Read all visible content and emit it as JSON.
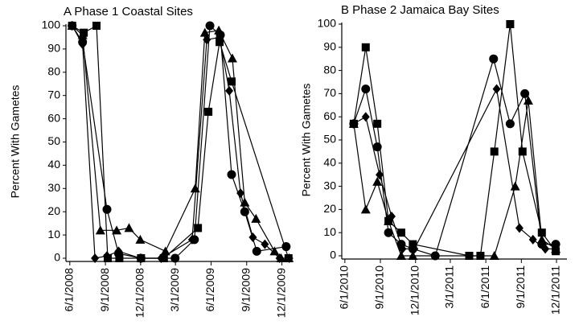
{
  "chart_data": [
    {
      "type": "line",
      "title": "A  Phase 1 Coastal Sites",
      "y_label": "Percent With Gametes",
      "xlim": [
        "2008-05-22",
        "2009-12-31"
      ],
      "ylim": [
        0,
        100
      ],
      "xticks": [
        {
          "value": "2008-06-01",
          "label": "6/1/2008"
        },
        {
          "value": "2008-09-01",
          "label": "9/1/2008"
        },
        {
          "value": "2008-12-01",
          "label": "12/1/2008"
        },
        {
          "value": "2009-03-01",
          "label": "3/1/2009"
        },
        {
          "value": "2009-06-01",
          "label": "6/1/2009"
        },
        {
          "value": "2009-09-01",
          "label": "9/1/2009"
        },
        {
          "value": "2009-12-01",
          "label": "12/1/2009"
        }
      ],
      "yticks": [
        0,
        10,
        20,
        30,
        40,
        50,
        60,
        70,
        80,
        90,
        100
      ],
      "series": [
        {
          "marker": "square",
          "color": "#000000",
          "x": [
            "2008-06-07",
            "2008-07-07",
            "2008-08-09",
            "2008-09-07",
            "2008-10-07",
            "2008-12-02",
            "2009-01-30",
            "2009-04-28",
            "2009-05-25",
            "2009-06-23",
            "2009-07-24",
            "2009-12-18"
          ],
          "values": [
            100,
            97,
            100,
            0,
            0,
            0,
            0,
            13,
            63,
            93,
            76,
            0
          ]
        },
        {
          "marker": "circle",
          "color": "#000000",
          "x": [
            "2008-06-07",
            "2008-07-04",
            "2008-09-05",
            "2008-10-05",
            "2008-12-02",
            "2009-02-28",
            "2009-04-19",
            "2009-05-29",
            "2009-06-25",
            "2009-07-24",
            "2009-08-27",
            "2009-09-27",
            "2009-12-12"
          ],
          "values": [
            100,
            93,
            21,
            2,
            0,
            0,
            8,
            100,
            96,
            36,
            20,
            3,
            5
          ]
        },
        {
          "marker": "triangle",
          "color": "#000000",
          "x": [
            "2008-06-07",
            "2008-07-04",
            "2008-08-19",
            "2008-09-30",
            "2008-11-01",
            "2008-11-30",
            "2009-02-03",
            "2009-04-21",
            "2009-05-16",
            "2009-06-21",
            "2009-07-26",
            "2009-08-27",
            "2009-09-25",
            "2009-11-12",
            "2009-11-29"
          ],
          "values": [
            100,
            96,
            12,
            12,
            13,
            8,
            3,
            30,
            97,
            98,
            86,
            24,
            17,
            3,
            0
          ]
        },
        {
          "marker": "diamond",
          "color": "#000000",
          "x": [
            "2008-06-07",
            "2008-07-04",
            "2008-08-05",
            "2008-09-05",
            "2008-10-05",
            "2008-11-30",
            "2009-01-23",
            "2009-04-13",
            "2009-05-21",
            "2009-06-23",
            "2009-07-18",
            "2009-08-16",
            "2009-09-17",
            "2009-10-18",
            "2009-11-25",
            "2009-12-20"
          ],
          "values": [
            100,
            92,
            0,
            1,
            3,
            0,
            0,
            8,
            94,
            95,
            72,
            28,
            9,
            6,
            0,
            0
          ]
        }
      ]
    },
    {
      "type": "line",
      "title": "B Phase 2  Jamaica Bay Sites",
      "y_label": "Percent With Gametes",
      "xlim": [
        "2010-05-24",
        "2011-12-28"
      ],
      "ylim": [
        0,
        100
      ],
      "xticks": [
        {
          "value": "2010-06-01",
          "label": "6/1/2010"
        },
        {
          "value": "2010-09-01",
          "label": "9/1/2010"
        },
        {
          "value": "2010-12-01",
          "label": "12/1/2010"
        },
        {
          "value": "2011-03-01",
          "label": "3/1/2011"
        },
        {
          "value": "2011-06-01",
          "label": "6/1/2011"
        },
        {
          "value": "2011-09-01",
          "label": "9/1/2011"
        },
        {
          "value": "2011-12-01",
          "label": "12/1/2011"
        }
      ],
      "yticks": [
        0,
        10,
        20,
        30,
        40,
        50,
        60,
        70,
        80,
        90,
        100
      ],
      "series": [
        {
          "marker": "square",
          "color": "#000000",
          "x": [
            "2010-06-24",
            "2010-07-25",
            "2010-08-24",
            "2010-09-22",
            "2010-10-25",
            "2010-11-24",
            "2011-04-19",
            "2011-05-18",
            "2011-06-23",
            "2011-08-03",
            "2011-09-04",
            "2011-10-24",
            "2011-11-29"
          ],
          "values": [
            57,
            90,
            57,
            15,
            10,
            5,
            0,
            0,
            45,
            100,
            45,
            10,
            2
          ]
        },
        {
          "marker": "circle",
          "color": "#000000",
          "x": [
            "2010-06-24",
            "2010-07-25",
            "2010-08-24",
            "2010-09-22",
            "2010-10-25",
            "2010-11-24",
            "2011-01-21",
            "2011-06-21",
            "2011-08-03",
            "2011-09-10",
            "2011-10-24",
            "2011-11-29"
          ],
          "values": [
            57,
            72,
            47,
            10,
            5,
            3,
            0,
            85,
            57,
            70,
            5,
            5
          ]
        },
        {
          "marker": "triangle",
          "color": "#000000",
          "x": [
            "2010-06-24",
            "2010-07-25",
            "2010-08-24",
            "2010-09-22",
            "2010-10-25",
            "2010-11-24",
            "2011-06-23",
            "2011-08-16",
            "2011-09-19",
            "2011-10-24",
            "2011-11-29"
          ],
          "values": [
            57,
            20,
            32,
            15,
            0,
            0,
            0,
            30,
            67,
            7,
            3
          ]
        },
        {
          "marker": "diamond",
          "color": "#000000",
          "x": [
            "2010-06-24",
            "2010-07-25",
            "2010-08-30",
            "2010-09-30",
            "2010-10-28",
            "2010-11-28",
            "2011-06-29",
            "2011-08-27",
            "2011-10-01",
            "2011-11-02",
            "2011-11-29"
          ],
          "values": [
            57,
            60,
            35,
            17,
            3,
            3,
            72,
            12,
            7,
            3,
            3
          ]
        }
      ]
    }
  ]
}
